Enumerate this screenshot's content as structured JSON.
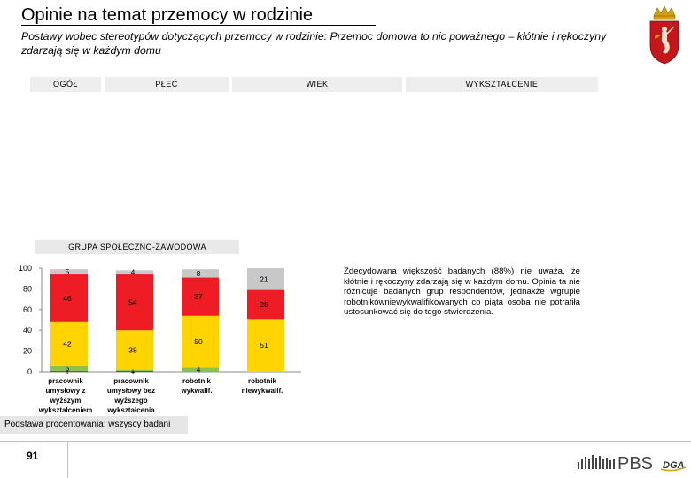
{
  "header": {
    "title": "Opinie na temat przemocy w rodzinie",
    "subtitle": "Postawy wobec stereotypów dotyczących przemocy w rodzinie: Przemoc domowa to nic poważnego – kłótnie i rękoczyny zdarzają się w każdym domu"
  },
  "segments": {
    "row1": [
      "OGÓŁ",
      "PŁEĆ",
      "WIEK",
      "WYKSZTAŁCENIE"
    ],
    "row2": "GRUPA SPOŁECZNO-ZAWODOWA"
  },
  "chart_data": {
    "type": "bar",
    "stacked": true,
    "yticks": [
      "0",
      "20",
      "40",
      "60",
      "80",
      "100"
    ],
    "ylim": [
      0,
      100
    ],
    "categories": [
      [
        "pracownik",
        "umysłowy z",
        "wyższym",
        "wykształceniem"
      ],
      [
        "pracownik",
        "umysłowy bez",
        "wyższego",
        "wykształcenia"
      ],
      [
        "robotnik",
        "wykwalif."
      ],
      [
        "robotnik",
        "niewykwalif."
      ]
    ],
    "series": [
      {
        "color": "#2e7d32",
        "values": [
          1,
          1,
          0,
          0
        ],
        "labels": [
          "1",
          "1",
          "",
          ""
        ]
      },
      {
        "color": "#8bc34a",
        "values": [
          5,
          1,
          4,
          0
        ],
        "labels": [
          "5",
          "1",
          "4",
          ""
        ]
      },
      {
        "color": "#ffd400",
        "values": [
          42,
          38,
          50,
          51
        ],
        "labels": [
          "42",
          "38",
          "50",
          "51"
        ]
      },
      {
        "color": "#ee1c25",
        "values": [
          46,
          54,
          37,
          28
        ],
        "labels": [
          "46",
          "54",
          "37",
          "28"
        ]
      },
      {
        "color": "#c8c8c8",
        "values": [
          5,
          4,
          8,
          21
        ],
        "labels": [
          "5",
          "4",
          "8",
          "21"
        ]
      }
    ],
    "grid": false,
    "legend": "none"
  },
  "description": "Zdecydowana większość badanych (88%) nie uważa, że kłótnie i rękoczyny zdarzają się w każdym domu. Opinia ta nie różnicuje badanych grup respondentów, jednakże wgrupie robotnikówniewykwalifikowanych co piąta osoba nie potrafiła ustosunkować się do tego stwierdzenia.",
  "base_note": "Podstawa procentowania: wszyscy badani",
  "footer": {
    "page_number": "91",
    "logo_text": "PBS",
    "logo_sub": "DGA"
  },
  "colors": {
    "crest_red": "#c4161c",
    "crest_gold": "#d4a017"
  }
}
